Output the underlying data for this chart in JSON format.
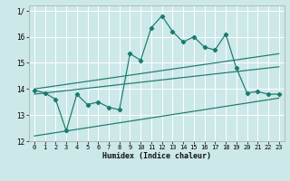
{
  "xlabel": "Humidex (Indice chaleur)",
  "bg_color": "#cce8e8",
  "line_color": "#1a7a6e",
  "grid_color": "#ffffff",
  "xlim": [
    -0.5,
    23.5
  ],
  "ylim": [
    12,
    17.2
  ],
  "yticks": [
    12,
    13,
    14,
    15,
    16,
    17
  ],
  "ytick_labels": [
    "12",
    "13",
    "14",
    "15",
    "16",
    "1/"
  ],
  "xticks": [
    0,
    1,
    2,
    3,
    4,
    5,
    6,
    7,
    8,
    9,
    10,
    11,
    12,
    13,
    14,
    15,
    16,
    17,
    18,
    19,
    20,
    21,
    22,
    23
  ],
  "main_line_x": [
    0,
    1,
    2,
    3,
    4,
    5,
    6,
    7,
    8,
    9,
    10,
    11,
    12,
    13,
    14,
    15,
    16,
    17,
    18,
    19,
    20,
    21,
    22,
    23
  ],
  "main_line_y": [
    13.95,
    13.85,
    13.6,
    12.4,
    13.8,
    13.4,
    13.5,
    13.3,
    13.2,
    15.35,
    15.1,
    16.35,
    16.8,
    16.2,
    15.8,
    16.0,
    15.6,
    15.5,
    16.1,
    14.8,
    13.85,
    13.9,
    13.8,
    13.8
  ],
  "upper_line_x": [
    0,
    23
  ],
  "upper_line_y": [
    14.0,
    15.35
  ],
  "mid_line_x": [
    0,
    23
  ],
  "mid_line_y": [
    13.8,
    14.85
  ],
  "lower_line_x": [
    0,
    23
  ],
  "lower_line_y": [
    12.2,
    13.65
  ]
}
